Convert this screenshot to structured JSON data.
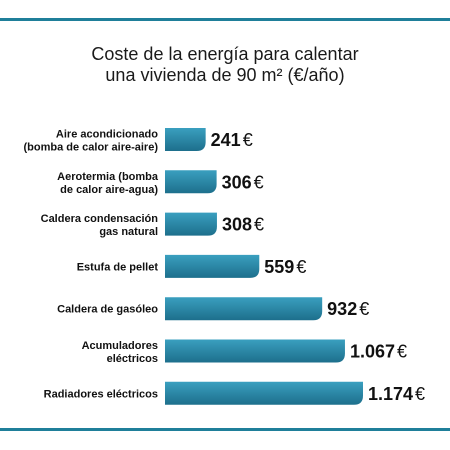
{
  "title_line1": "Coste de la energía para calentar",
  "title_line2": "una vivienda de 90 m² (€/año)",
  "colors": {
    "accent_rule": "#1f7f9a",
    "bar_dark": "#1d6f8c",
    "bar_light": "#3a9fbf",
    "label_text": "#111111"
  },
  "chart_data": {
    "type": "bar",
    "orientation": "horizontal",
    "title": "Coste de la energía para calentar una vivienda de 90 m² (€/año)",
    "categories": [
      [
        "Aire acondicionado",
        "(bomba de calor aire-aire)"
      ],
      [
        "Aerotermia (bomba",
        "de calor aire-agua)"
      ],
      [
        "Caldera condensación",
        "gas natural"
      ],
      [
        "Estufa de pellet"
      ],
      [
        "Caldera de gasóleo"
      ],
      [
        "Acumuladores",
        "eléctricos"
      ],
      [
        "Radiadores eléctricos"
      ]
    ],
    "values": [
      241,
      306,
      308,
      559,
      932,
      1067,
      1174
    ],
    "value_labels": [
      "241",
      "306",
      "308",
      "559",
      "932",
      "1.067",
      "1.174"
    ],
    "unit": "€",
    "xlim": [
      0,
      1174
    ]
  }
}
